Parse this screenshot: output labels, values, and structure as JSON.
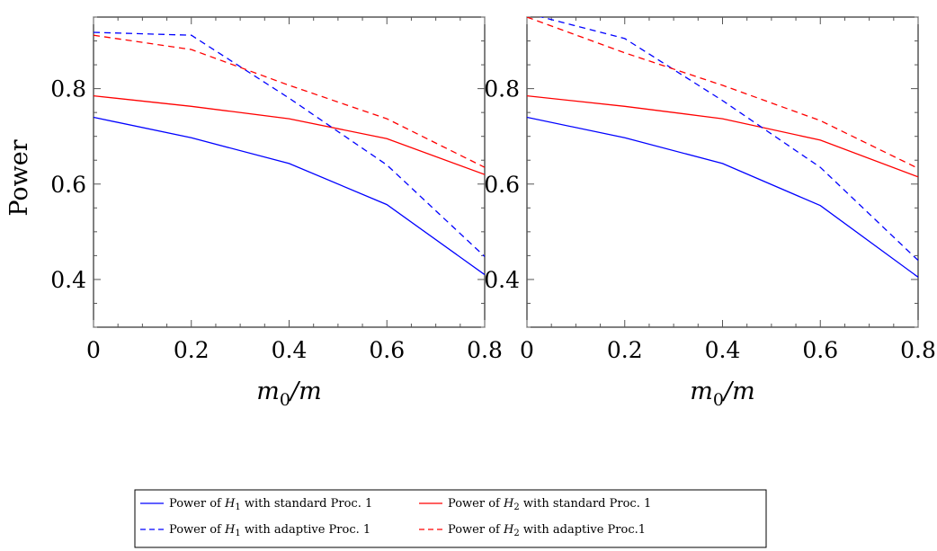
{
  "chart_data": [
    {
      "type": "line",
      "title": "",
      "xlabel": "m0/m",
      "ylabel": "Power",
      "x": [
        0,
        0.2,
        0.4,
        0.6,
        0.8
      ],
      "xlim": [
        0,
        0.8
      ],
      "ylim": [
        0.3,
        0.95
      ],
      "xticks": [
        "0",
        "0.2",
        "0.4",
        "0.6",
        "0.8"
      ],
      "yticks": [
        "0.4",
        "0.6",
        "0.8"
      ],
      "grid": false,
      "series": [
        {
          "values": [
            0.74,
            0.697,
            0.643,
            0.557,
            0.41
          ],
          "color": "#0000ff",
          "dash": "solid"
        },
        {
          "values": [
            0.785,
            0.763,
            0.737,
            0.695,
            0.62
          ],
          "color": "#ff0000",
          "dash": "solid"
        },
        {
          "values": [
            0.918,
            0.912,
            0.78,
            0.64,
            0.448
          ],
          "color": "#0000ff",
          "dash": "dashed"
        },
        {
          "values": [
            0.912,
            0.882,
            0.807,
            0.737,
            0.635
          ],
          "color": "#ff0000",
          "dash": "dashed"
        }
      ]
    },
    {
      "type": "line",
      "title": "",
      "xlabel": "m0/m",
      "ylabel": "",
      "x": [
        0,
        0.2,
        0.4,
        0.6,
        0.8
      ],
      "xlim": [
        0,
        0.8
      ],
      "ylim": [
        0.3,
        0.95
      ],
      "xticks": [
        "0",
        "0.2",
        "0.4",
        "0.6",
        "0.8"
      ],
      "yticks": [
        "0.4",
        "0.6",
        "0.8"
      ],
      "grid": false,
      "series": [
        {
          "values": [
            0.74,
            0.697,
            0.643,
            0.555,
            0.405
          ],
          "color": "#0000ff",
          "dash": "solid"
        },
        {
          "values": [
            0.785,
            0.763,
            0.737,
            0.692,
            0.615
          ],
          "color": "#ff0000",
          "dash": "solid"
        },
        {
          "values": [
            0.958,
            0.905,
            0.775,
            0.635,
            0.44
          ],
          "color": "#0000ff",
          "dash": "dashed"
        },
        {
          "values": [
            0.95,
            0.875,
            0.807,
            0.733,
            0.633
          ],
          "color": "#ff0000",
          "dash": "dashed"
        }
      ]
    }
  ],
  "legend": {
    "placement": "bottom-center",
    "rows": [
      [
        {
          "series": 0,
          "text": "Power of H1 with standard Proc. 1"
        },
        {
          "series": 1,
          "text": "Power of H2 with standard Proc. 1"
        }
      ],
      [
        {
          "series": 2,
          "text": "Power of H1 with adaptive Proc. 1"
        },
        {
          "series": 3,
          "text": "Power of H2 with adaptive Proc.1"
        }
      ]
    ]
  }
}
